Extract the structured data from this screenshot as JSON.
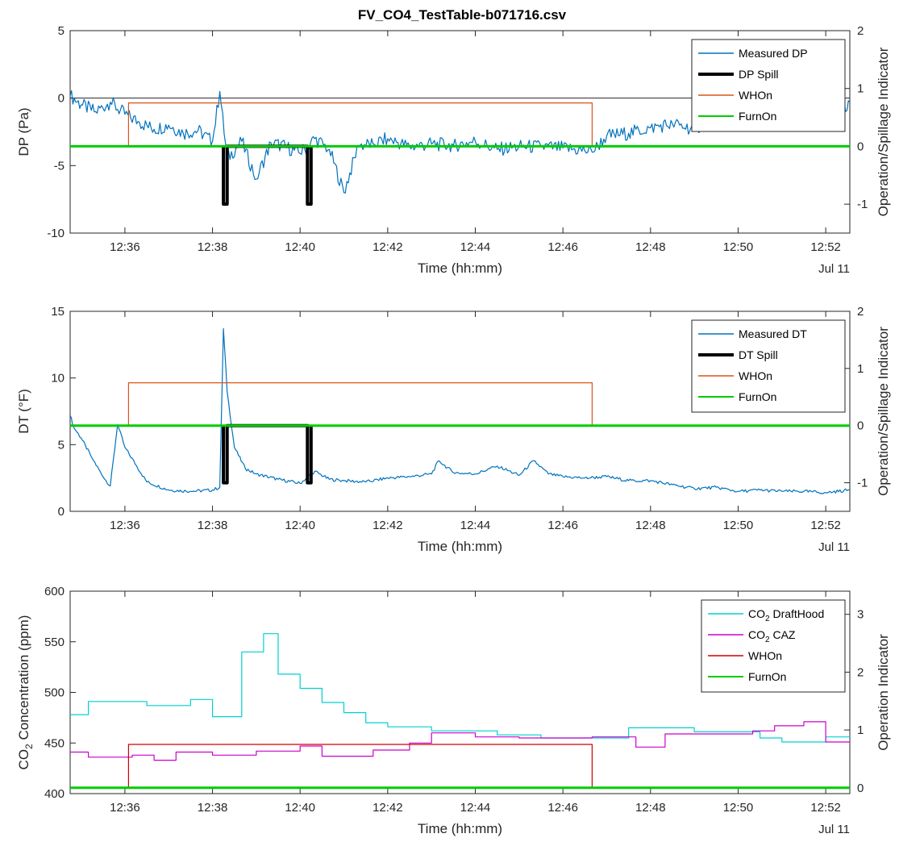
{
  "figure_title": "FV_CO4_TestTable-b071716.csv",
  "colors": {
    "measured": "#0072BD",
    "spill": "#000000",
    "whon_orange": "#D95319",
    "furnon": "#00CC00",
    "co2_drafthood": "#00D0D0",
    "co2_caz": "#CC00CC",
    "whon_red": "#D00000"
  },
  "chart_data": [
    {
      "type": "line",
      "title": "FV_CO4_TestTable-b071716.csv",
      "xlabel": "Time (hh:mm)",
      "x_date_label": "Jul 11",
      "ylabel": "DP (Pa)",
      "ylabel2": "Operation/Spillage Indicator",
      "xlim": [
        "12:34:45",
        "12:52:33"
      ],
      "ylim": [
        -10,
        5
      ],
      "ylim2": [
        -1.5,
        2
      ],
      "xticks": [
        "12:36",
        "12:38",
        "12:40",
        "12:42",
        "12:44",
        "12:46",
        "12:48",
        "12:50",
        "12:52"
      ],
      "yticks": [
        -10,
        -5,
        0,
        5
      ],
      "yticks2": [
        -1,
        0,
        1,
        2
      ],
      "legend_position": "top-right",
      "series": [
        {
          "name": "Measured DP",
          "axis": "left",
          "x": [
            "12:34:45",
            "12:35:00",
            "12:35:20",
            "12:35:40",
            "12:36:00",
            "12:36:20",
            "12:36:40",
            "12:37:00",
            "12:37:20",
            "12:37:40",
            "12:38:00",
            "12:38:10",
            "12:38:20",
            "12:38:40",
            "12:39:00",
            "12:39:20",
            "12:39:40",
            "12:40:00",
            "12:40:20",
            "12:40:40",
            "12:41:00",
            "12:41:20",
            "12:41:40",
            "12:42:00",
            "12:42:30",
            "12:43:00",
            "12:43:30",
            "12:44:00",
            "12:44:30",
            "12:45:00",
            "12:45:30",
            "12:46:00",
            "12:46:30",
            "12:46:40",
            "12:47:00",
            "12:47:30",
            "12:48:00",
            "12:48:30",
            "12:49:00",
            "12:49:30",
            "12:50:00",
            "12:50:30",
            "12:51:00",
            "12:51:30",
            "12:52:00",
            "12:52:33"
          ],
          "values": [
            0.2,
            -0.5,
            -1.0,
            -0.3,
            -1.2,
            -1.8,
            -2.3,
            -2.0,
            -2.6,
            -2.4,
            -3.2,
            0.5,
            -4.5,
            -3.2,
            -6.0,
            -3.3,
            -3.6,
            -4.1,
            -3.0,
            -3.8,
            -7.0,
            -3.5,
            -3.4,
            -3.0,
            -3.6,
            -3.4,
            -3.5,
            -3.2,
            -3.8,
            -3.6,
            -3.6,
            -3.7,
            -3.9,
            -4.0,
            -2.8,
            -2.6,
            -2.2,
            -1.9,
            -2.3,
            -1.3,
            -1.7,
            -2.1,
            -1.4,
            -2.0,
            -1.6,
            -0.3
          ]
        },
        {
          "name": "DP Spill",
          "axis": "right",
          "x": [
            "12:38:15",
            "12:38:15",
            "12:38:20",
            "12:38:20",
            "12:40:10",
            "12:40:10",
            "12:40:15",
            "12:40:15"
          ],
          "values": [
            0,
            -1,
            -1,
            0,
            0,
            -1,
            -1,
            0
          ]
        },
        {
          "name": "WHOn",
          "axis": "right",
          "x": [
            "12:34:45",
            "12:36:05",
            "12:36:05",
            "12:46:40",
            "12:46:40",
            "12:52:33"
          ],
          "values": [
            0,
            0,
            0.75,
            0.75,
            0,
            0
          ]
        },
        {
          "name": "FurnOn",
          "axis": "right",
          "x": [
            "12:34:45",
            "12:52:33"
          ],
          "values": [
            0,
            0
          ]
        }
      ]
    },
    {
      "type": "line",
      "xlabel": "Time (hh:mm)",
      "x_date_label": "Jul 11",
      "ylabel": "DT (°F)",
      "ylabel2": "Operation/Spillage Indicator",
      "xlim": [
        "12:34:45",
        "12:52:33"
      ],
      "ylim": [
        0,
        15
      ],
      "ylim2": [
        -1.5,
        2
      ],
      "xticks": [
        "12:36",
        "12:38",
        "12:40",
        "12:42",
        "12:44",
        "12:46",
        "12:48",
        "12:50",
        "12:52"
      ],
      "yticks": [
        0,
        5,
        10,
        15
      ],
      "yticks2": [
        -1,
        0,
        1,
        2
      ],
      "legend_position": "top-right",
      "series": [
        {
          "name": "Measured DT",
          "axis": "left",
          "x": [
            "12:34:45",
            "12:34:50",
            "12:35:00",
            "12:35:15",
            "12:35:30",
            "12:35:40",
            "12:35:50",
            "12:36:00",
            "12:36:30",
            "12:37:00",
            "12:37:30",
            "12:38:00",
            "12:38:10",
            "12:38:15",
            "12:38:20",
            "12:38:30",
            "12:38:45",
            "12:39:00",
            "12:39:30",
            "12:40:00",
            "12:40:20",
            "12:40:40",
            "12:41:00",
            "12:41:30",
            "12:42:00",
            "12:42:30",
            "12:43:00",
            "12:43:10",
            "12:43:30",
            "12:44:00",
            "12:44:30",
            "12:45:00",
            "12:45:20",
            "12:45:40",
            "12:46:00",
            "12:46:30",
            "12:47:00",
            "12:47:30",
            "12:48:00",
            "12:48:30",
            "12:49:00",
            "12:49:30",
            "12:50:00",
            "12:50:30",
            "12:51:00",
            "12:51:30",
            "12:52:00",
            "12:52:33"
          ],
          "values": [
            7.2,
            6.3,
            5.5,
            4.0,
            2.6,
            1.9,
            6.5,
            4.8,
            2.2,
            1.6,
            1.5,
            1.6,
            1.8,
            13.7,
            9.0,
            4.8,
            3.2,
            2.8,
            2.4,
            2.1,
            3.0,
            2.4,
            2.3,
            2.2,
            2.5,
            2.6,
            2.8,
            3.8,
            2.9,
            2.8,
            3.4,
            2.7,
            3.8,
            2.8,
            2.6,
            2.5,
            2.6,
            2.3,
            2.3,
            2.0,
            1.7,
            1.8,
            1.5,
            1.6,
            1.5,
            1.5,
            1.4,
            1.6
          ]
        },
        {
          "name": "DT Spill",
          "axis": "right",
          "x": [
            "12:38:15",
            "12:38:15",
            "12:38:20",
            "12:38:20",
            "12:40:10",
            "12:40:10",
            "12:40:15",
            "12:40:15"
          ],
          "values": [
            0,
            -1,
            -1,
            0,
            0,
            -1,
            -1,
            0
          ]
        },
        {
          "name": "WHOn",
          "axis": "right",
          "x": [
            "12:34:45",
            "12:36:05",
            "12:36:05",
            "12:46:40",
            "12:46:40",
            "12:52:33"
          ],
          "values": [
            0,
            0,
            0.75,
            0.75,
            0,
            0
          ]
        },
        {
          "name": "FurnOn",
          "axis": "right",
          "x": [
            "12:34:45",
            "12:52:33"
          ],
          "values": [
            0,
            0
          ]
        }
      ]
    },
    {
      "type": "line",
      "xlabel": "Time (hh:mm)",
      "x_date_label": "Jul 11",
      "ylabel": "CO2 Concentration (ppm)",
      "ylabel2": "Operation Indicator",
      "xlim": [
        "12:34:45",
        "12:52:33"
      ],
      "ylim": [
        400,
        600
      ],
      "ylim2": [
        -0.1,
        3.4
      ],
      "xticks": [
        "12:36",
        "12:38",
        "12:40",
        "12:42",
        "12:44",
        "12:46",
        "12:48",
        "12:50",
        "12:52"
      ],
      "yticks": [
        400,
        450,
        500,
        550,
        600
      ],
      "yticks2": [
        0,
        1,
        2,
        3
      ],
      "legend_position": "top-right",
      "series": [
        {
          "name": "CO2 DraftHood",
          "axis": "left",
          "x": [
            "12:34:45",
            "12:35:10",
            "12:35:10",
            "12:36:30",
            "12:36:30",
            "12:37:30",
            "12:37:30",
            "12:38:00",
            "12:38:00",
            "12:38:40",
            "12:38:40",
            "12:39:10",
            "12:39:10",
            "12:39:30",
            "12:39:30",
            "12:40:00",
            "12:40:00",
            "12:40:30",
            "12:40:30",
            "12:41:00",
            "12:41:00",
            "12:41:30",
            "12:41:30",
            "12:42:00",
            "12:42:00",
            "12:43:00",
            "12:43:00",
            "12:44:30",
            "12:44:30",
            "12:45:30",
            "12:45:30",
            "12:47:30",
            "12:47:30",
            "12:49:00",
            "12:49:00",
            "12:50:30",
            "12:50:30",
            "12:51:00",
            "12:51:00",
            "12:52:00",
            "12:52:00",
            "12:52:33"
          ],
          "values": [
            478,
            478,
            491,
            491,
            487,
            487,
            493,
            493,
            476,
            476,
            540,
            540,
            558,
            558,
            518,
            518,
            504,
            504,
            490,
            490,
            480,
            480,
            470,
            470,
            466,
            466,
            462,
            462,
            458,
            458,
            455,
            455,
            465,
            465,
            461,
            461,
            455,
            455,
            451,
            451,
            456,
            456
          ]
        },
        {
          "name": "CO2 CAZ",
          "axis": "left",
          "x": [
            "12:34:45",
            "12:35:10",
            "12:35:10",
            "12:36:10",
            "12:36:10",
            "12:36:40",
            "12:36:40",
            "12:37:10",
            "12:37:10",
            "12:38:00",
            "12:38:00",
            "12:39:00",
            "12:39:00",
            "12:40:00",
            "12:40:00",
            "12:40:30",
            "12:40:30",
            "12:41:40",
            "12:41:40",
            "12:42:30",
            "12:42:30",
            "12:43:00",
            "12:43:00",
            "12:44:00",
            "12:44:00",
            "12:45:00",
            "12:45:00",
            "12:46:40",
            "12:46:40",
            "12:47:40",
            "12:47:40",
            "12:48:20",
            "12:48:20",
            "12:50:20",
            "12:50:20",
            "12:50:50",
            "12:50:50",
            "12:51:30",
            "12:51:30",
            "12:52:00",
            "12:52:00",
            "12:52:33"
          ],
          "values": [
            441,
            441,
            436,
            436,
            438,
            438,
            433,
            433,
            441,
            441,
            438,
            438,
            442,
            442,
            447,
            447,
            437,
            437,
            443,
            443,
            450,
            450,
            460,
            460,
            456,
            456,
            455,
            455,
            456,
            456,
            446,
            446,
            459,
            459,
            462,
            462,
            467,
            467,
            471,
            471,
            451,
            451
          ]
        },
        {
          "name": "WHOn",
          "axis": "right",
          "x": [
            "12:34:45",
            "12:36:05",
            "12:36:05",
            "12:46:40",
            "12:46:40",
            "12:52:33"
          ],
          "values": [
            0,
            0,
            0.75,
            0.75,
            0,
            0
          ]
        },
        {
          "name": "FurnOn",
          "axis": "right",
          "x": [
            "12:34:45",
            "12:52:33"
          ],
          "values": [
            0,
            0
          ]
        }
      ]
    }
  ]
}
